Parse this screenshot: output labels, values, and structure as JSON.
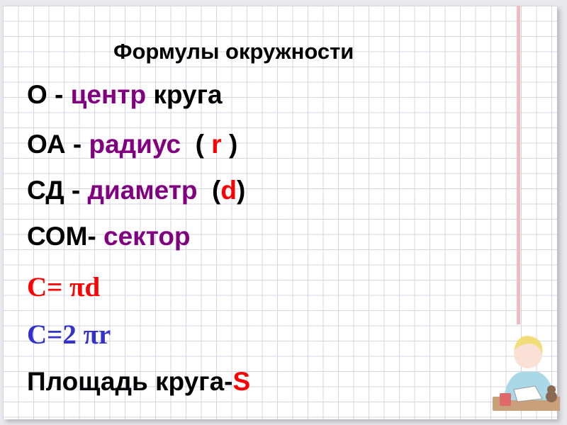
{
  "title": "Формулы окружности",
  "lines": [
    {
      "a": "О - ",
      "b": "центр",
      "c": " круга"
    },
    {
      "a": "ОА - ",
      "b": "радиус",
      "c": "  ( ",
      "d": "r",
      "e": " )"
    },
    {
      "a": "СД - ",
      "b": "диаметр",
      "c": "  (",
      "d": "d",
      "e": ")"
    },
    {
      "a": "СОМ- ",
      "b": "сектор"
    },
    {
      "a": "C= πd"
    },
    {
      "a": "C=2 πr"
    },
    {
      "a": "Площадь круга-",
      "b": "S"
    }
  ],
  "colors": {
    "term": "#800080",
    "symbol": "#ff0000",
    "formula_blue": "#3333cc"
  },
  "illustration": "girl-writing-at-desk"
}
